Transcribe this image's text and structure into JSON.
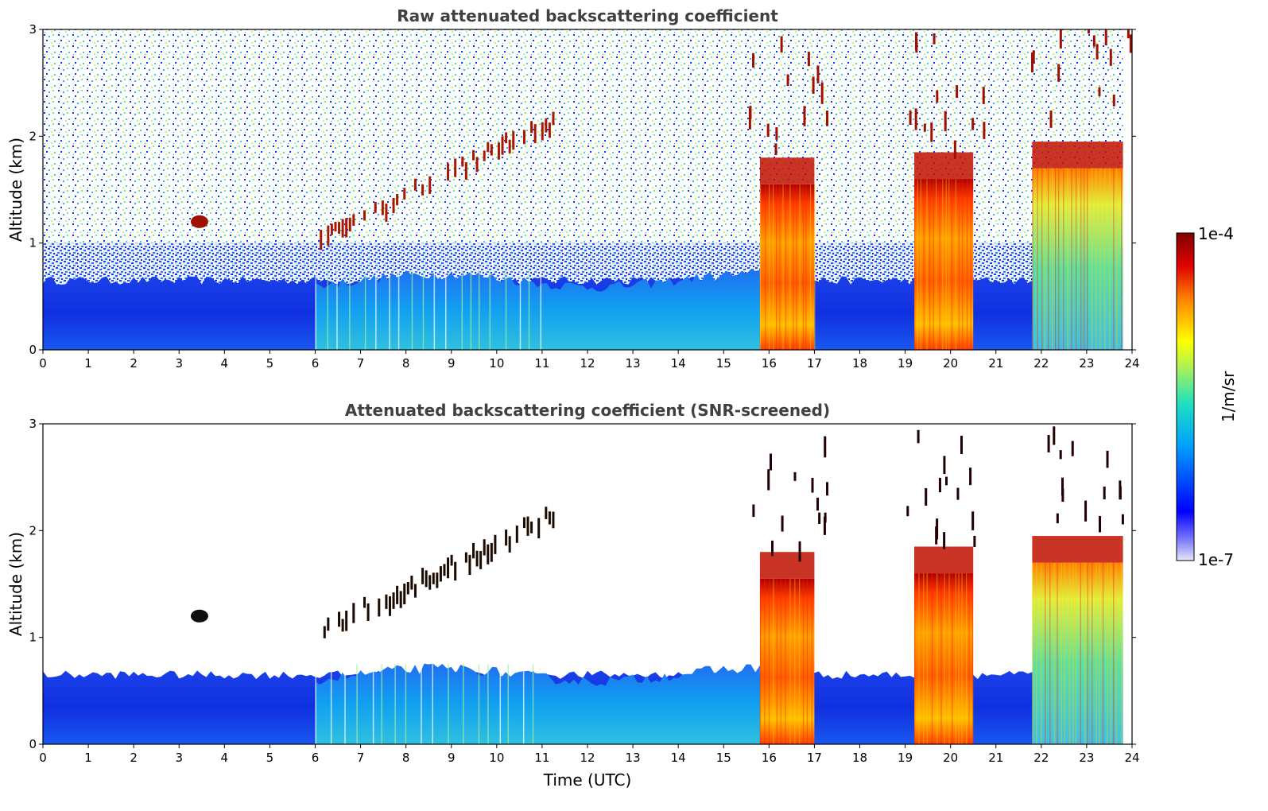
{
  "chart_data": [
    {
      "type": "heatmap",
      "title": "Raw attenuated backscattering coefficient",
      "xlabel": "",
      "ylabel": "Altitude (km)",
      "xlim": [
        0,
        24
      ],
      "ylim": [
        0,
        3
      ],
      "xticks": [
        "0",
        "1",
        "2",
        "3",
        "4",
        "5",
        "6",
        "7",
        "8",
        "9",
        "10",
        "11",
        "12",
        "13",
        "14",
        "15",
        "16",
        "17",
        "18",
        "19",
        "20",
        "21",
        "22",
        "23",
        "24"
      ],
      "yticks": [
        "0",
        "1",
        "2",
        "3"
      ],
      "features": [
        {
          "kind": "noise_background",
          "x_range": [
            0,
            23.8
          ],
          "y_range": [
            0.5,
            3
          ]
        },
        {
          "kind": "boundary_layer",
          "x_range": [
            0,
            23.8
          ],
          "top_km": 0.65
        },
        {
          "kind": "aerosol_column",
          "x_range": [
            6,
            15.8
          ],
          "top_km": 0.8
        },
        {
          "kind": "cloud_blob",
          "x": 3.45,
          "y": 1.2
        },
        {
          "kind": "rising_cloud_layer",
          "x_range": [
            6.1,
            11.3
          ],
          "y_range": [
            1.0,
            2.1
          ]
        },
        {
          "kind": "thick_cloud",
          "x_range": [
            15.8,
            17.0
          ],
          "base_km": 1.55
        },
        {
          "kind": "thick_cloud",
          "x_range": [
            19.2,
            20.5
          ],
          "base_km": 1.6
        },
        {
          "kind": "thick_cloud",
          "x_range": [
            21.8,
            23.8
          ],
          "base_km": 1.7
        }
      ]
    },
    {
      "type": "heatmap",
      "title": "Attenuated backscattering coefficient (SNR-screened)",
      "xlabel": "Time (UTC)",
      "ylabel": "Altitude (km)",
      "xlim": [
        0,
        24
      ],
      "ylim": [
        0,
        3
      ],
      "xticks": [
        "0",
        "1",
        "2",
        "3",
        "4",
        "5",
        "6",
        "7",
        "8",
        "9",
        "10",
        "11",
        "12",
        "13",
        "14",
        "15",
        "16",
        "17",
        "18",
        "19",
        "20",
        "21",
        "22",
        "23",
        "24"
      ],
      "yticks": [
        "0",
        "1",
        "2",
        "3"
      ],
      "features": [
        {
          "kind": "boundary_layer",
          "x_range": [
            0,
            23.8
          ],
          "top_km": 0.65
        },
        {
          "kind": "aerosol_column",
          "x_range": [
            6,
            15.8
          ],
          "top_km": 0.8
        },
        {
          "kind": "cloud_blob",
          "x": 3.45,
          "y": 1.2
        },
        {
          "kind": "rising_cloud_layer",
          "x_range": [
            6.1,
            11.3
          ],
          "y_range": [
            1.0,
            2.1
          ]
        },
        {
          "kind": "thick_cloud",
          "x_range": [
            15.8,
            17.0
          ],
          "base_km": 1.55
        },
        {
          "kind": "thick_cloud",
          "x_range": [
            19.2,
            20.5
          ],
          "base_km": 1.6
        },
        {
          "kind": "thick_cloud",
          "x_range": [
            21.8,
            23.8
          ],
          "base_km": 1.7
        }
      ]
    }
  ],
  "colorbar": {
    "label": "1/m/sr",
    "max_label": "1e-4",
    "min_label": "1e-7",
    "scale": "log",
    "colormap": [
      "#e6e6f5",
      "#0000ff",
      "#00a0ff",
      "#20e0c0",
      "#a0f060",
      "#ffff00",
      "#ff8000",
      "#e00000",
      "#800000"
    ]
  }
}
